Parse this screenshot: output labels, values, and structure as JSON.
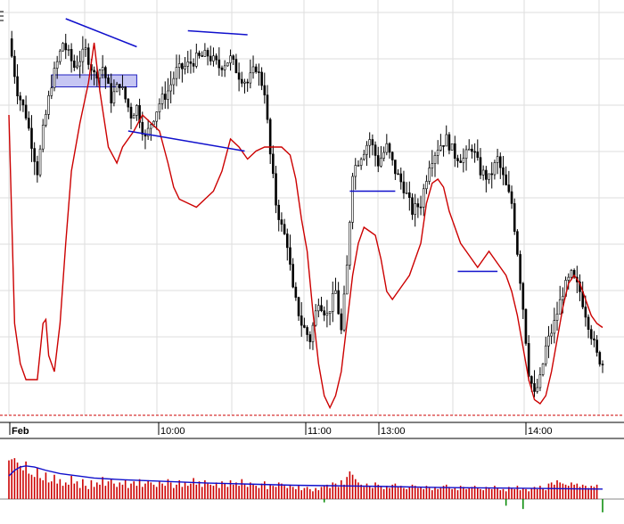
{
  "chart_data": {
    "type": "line",
    "title": "",
    "xlabel": "",
    "ylabel": "",
    "x_tick_labels": [
      "Feb",
      "10:00",
      "11:00",
      "13:00",
      "14:00"
    ],
    "grid": true,
    "colors": {
      "candles": "#000000",
      "indicator_line": "#cc0000",
      "trend_lines": "#1010cc",
      "highlight_box": "#b8b8f0",
      "volume_bars": "#cc0000",
      "volume_average": "#1010cc",
      "volume_down_marks": "#008800",
      "grid": "#dddddd"
    },
    "price_panel": {
      "ylim": [
        0,
        100
      ],
      "close_path": [
        [
          0,
          93
        ],
        [
          3,
          80
        ],
        [
          6,
          74
        ],
        [
          10,
          60
        ],
        [
          12,
          70
        ],
        [
          15,
          82
        ],
        [
          19,
          92
        ],
        [
          23,
          86
        ],
        [
          27,
          90
        ],
        [
          30,
          84
        ],
        [
          33,
          86
        ],
        [
          36,
          78
        ],
        [
          39,
          82
        ],
        [
          43,
          74
        ],
        [
          45,
          76
        ],
        [
          48,
          68
        ],
        [
          50,
          72
        ],
        [
          53,
          77
        ],
        [
          56,
          80
        ],
        [
          59,
          85
        ],
        [
          62,
          86
        ],
        [
          66,
          88
        ],
        [
          70,
          89
        ],
        [
          74,
          86
        ],
        [
          78,
          88
        ],
        [
          81,
          84
        ],
        [
          84,
          82
        ],
        [
          87,
          86
        ],
        [
          90,
          80
        ],
        [
          92,
          64
        ],
        [
          94,
          52
        ],
        [
          96,
          46
        ],
        [
          98,
          42
        ],
        [
          100,
          30
        ],
        [
          103,
          22
        ],
        [
          106,
          18
        ],
        [
          109,
          28
        ],
        [
          112,
          24
        ],
        [
          115,
          30
        ],
        [
          117,
          20
        ],
        [
          119,
          36
        ],
        [
          121,
          60
        ],
        [
          124,
          64
        ],
        [
          127,
          68
        ],
        [
          130,
          62
        ],
        [
          133,
          66
        ],
        [
          136,
          60
        ],
        [
          139,
          56
        ],
        [
          142,
          50
        ],
        [
          145,
          52
        ],
        [
          148,
          62
        ],
        [
          151,
          66
        ],
        [
          154,
          68
        ],
        [
          157,
          64
        ],
        [
          160,
          63
        ],
        [
          163,
          66
        ],
        [
          166,
          60
        ],
        [
          169,
          58
        ],
        [
          172,
          63
        ],
        [
          175,
          56
        ],
        [
          177,
          52
        ],
        [
          179,
          40
        ],
        [
          181,
          26
        ],
        [
          183,
          10
        ],
        [
          185,
          4
        ],
        [
          187,
          8
        ],
        [
          189,
          16
        ],
        [
          192,
          22
        ],
        [
          195,
          30
        ],
        [
          198,
          34
        ],
        [
          201,
          30
        ],
        [
          204,
          22
        ],
        [
          207,
          14
        ],
        [
          209,
          12
        ]
      ],
      "candle_spread": 3.5,
      "indicator": [
        [
          0,
          74
        ],
        [
          2,
          22
        ],
        [
          4,
          12
        ],
        [
          6,
          8
        ],
        [
          8,
          8
        ],
        [
          10,
          8
        ],
        [
          12,
          22
        ],
        [
          13,
          23
        ],
        [
          14,
          14
        ],
        [
          16,
          10
        ],
        [
          18,
          22
        ],
        [
          20,
          42
        ],
        [
          22,
          60
        ],
        [
          25,
          72
        ],
        [
          28,
          82
        ],
        [
          30,
          92
        ],
        [
          32,
          80
        ],
        [
          35,
          66
        ],
        [
          38,
          62
        ],
        [
          40,
          66
        ],
        [
          44,
          70
        ],
        [
          47,
          74
        ],
        [
          50,
          72
        ],
        [
          53,
          70
        ],
        [
          56,
          62
        ],
        [
          58,
          56
        ],
        [
          60,
          53
        ],
        [
          63,
          52
        ],
        [
          66,
          51
        ],
        [
          69,
          53
        ],
        [
          72,
          55
        ],
        [
          75,
          60
        ],
        [
          78,
          68
        ],
        [
          81,
          66
        ],
        [
          84,
          63
        ],
        [
          87,
          65
        ],
        [
          90,
          66
        ],
        [
          93,
          66
        ],
        [
          96,
          66
        ],
        [
          99,
          64
        ],
        [
          101,
          58
        ],
        [
          103,
          48
        ],
        [
          105,
          40
        ],
        [
          107,
          25
        ],
        [
          109,
          12
        ],
        [
          111,
          4
        ],
        [
          113,
          1
        ],
        [
          115,
          4
        ],
        [
          117,
          10
        ],
        [
          119,
          22
        ],
        [
          121,
          34
        ],
        [
          123,
          42
        ],
        [
          125,
          46
        ],
        [
          127,
          45
        ],
        [
          129,
          44
        ],
        [
          131,
          38
        ],
        [
          133,
          30
        ],
        [
          135,
          28
        ],
        [
          137,
          30
        ],
        [
          139,
          32
        ],
        [
          141,
          34
        ],
        [
          143,
          38
        ],
        [
          145,
          42
        ],
        [
          147,
          52
        ],
        [
          149,
          57
        ],
        [
          151,
          58
        ],
        [
          153,
          56
        ],
        [
          155,
          50
        ],
        [
          157,
          46
        ],
        [
          159,
          42
        ],
        [
          161,
          40
        ],
        [
          163,
          38
        ],
        [
          165,
          36
        ],
        [
          167,
          38
        ],
        [
          169,
          40
        ],
        [
          171,
          38
        ],
        [
          173,
          36
        ],
        [
          175,
          34
        ],
        [
          177,
          30
        ],
        [
          179,
          24
        ],
        [
          181,
          16
        ],
        [
          183,
          8
        ],
        [
          185,
          3
        ],
        [
          187,
          2
        ],
        [
          189,
          4
        ],
        [
          191,
          10
        ],
        [
          193,
          18
        ],
        [
          195,
          26
        ],
        [
          197,
          32
        ],
        [
          199,
          34
        ],
        [
          201,
          32
        ],
        [
          203,
          28
        ],
        [
          205,
          24
        ],
        [
          207,
          22
        ],
        [
          209,
          21
        ]
      ],
      "trend_lines": [
        [
          [
            20,
            98
          ],
          [
            45,
            91
          ]
        ],
        [
          [
            63,
            95
          ],
          [
            84,
            94
          ]
        ],
        [
          [
            42,
            70
          ],
          [
            83,
            65
          ]
        ],
        [
          [
            120,
            55
          ],
          [
            136,
            55
          ]
        ],
        [
          [
            158,
            35
          ],
          [
            172,
            35
          ]
        ]
      ],
      "highlight_band": {
        "x": [
          15,
          45
        ],
        "y": [
          81,
          84
        ]
      }
    },
    "volume_panel": {
      "ylim": [
        0,
        100
      ],
      "bars": [
        70,
        72,
        74,
        66,
        60,
        52,
        68,
        46,
        44,
        40,
        56,
        38,
        34,
        48,
        30,
        32,
        44,
        28,
        36,
        24,
        30,
        26,
        42,
        28,
        32,
        20,
        36,
        24,
        18,
        34,
        22,
        30,
        26,
        40,
        24,
        32,
        36,
        28,
        22,
        30,
        26,
        34,
        20,
        28,
        32,
        24,
        36,
        22,
        28,
        34,
        30,
        26,
        22,
        32,
        28,
        24,
        36,
        30,
        20,
        26,
        34,
        22,
        30,
        24,
        28,
        38,
        26,
        32,
        22,
        34,
        28,
        26,
        24,
        30,
        20,
        32,
        28,
        22,
        34,
        26,
        30,
        24,
        36,
        28,
        22,
        30,
        26,
        24,
        20,
        28,
        32,
        18,
        26,
        24,
        22,
        30,
        28,
        24,
        20,
        26,
        22,
        18,
        24,
        16,
        20,
        22,
        18,
        14,
        20,
        16,
        22,
        24,
        26,
        20,
        30,
        28,
        22,
        34,
        26,
        40,
        50,
        44,
        36,
        30,
        26,
        22,
        28,
        24,
        20,
        30,
        26,
        22,
        18,
        24,
        20,
        26,
        28,
        22,
        24,
        20,
        18,
        22,
        26,
        24,
        20,
        22,
        18,
        24,
        20,
        16,
        22,
        18,
        20,
        24,
        26,
        22,
        18,
        20,
        16,
        24,
        22,
        18,
        20,
        22,
        24,
        20,
        18,
        16,
        22,
        20,
        18,
        24,
        20,
        16,
        18,
        14,
        22,
        20,
        18,
        24,
        16,
        20,
        18,
        14,
        20,
        22,
        18,
        24,
        20,
        16,
        28,
        30,
        26,
        34,
        30,
        28,
        26,
        24,
        30,
        26,
        28,
        22,
        26,
        24,
        20,
        24,
        22,
        26
      ],
      "average": [
        [
          0,
          42
        ],
        [
          2,
          52
        ],
        [
          4,
          58
        ],
        [
          6,
          60
        ],
        [
          9,
          58
        ],
        [
          13,
          52
        ],
        [
          18,
          46
        ],
        [
          24,
          42
        ],
        [
          30,
          38
        ],
        [
          40,
          35
        ],
        [
          55,
          32
        ],
        [
          70,
          29
        ],
        [
          85,
          27
        ],
        [
          100,
          25
        ],
        [
          115,
          24
        ],
        [
          130,
          23
        ],
        [
          150,
          21
        ],
        [
          170,
          20
        ],
        [
          190,
          19
        ],
        [
          209,
          18
        ]
      ],
      "down_marks": [
        [
          111,
          -6
        ],
        [
          175,
          -12
        ],
        [
          181,
          -18
        ],
        [
          209,
          -24
        ]
      ]
    }
  }
}
